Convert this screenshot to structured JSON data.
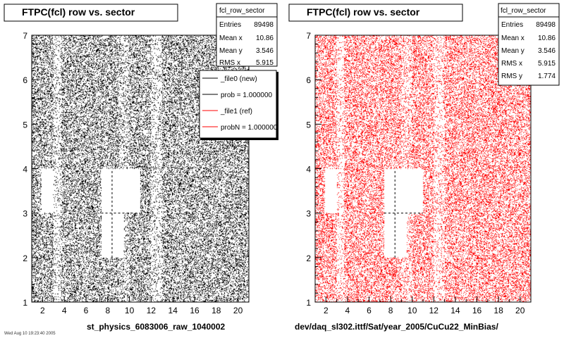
{
  "colors": {
    "left_points": "#000000",
    "right_points": "#ff0000",
    "frame": "#000000"
  },
  "chart_data": [
    {
      "type": "scatter",
      "title": "FTPC(fcl) row vs. sector",
      "xlabel": "",
      "ylabel": "",
      "xlim": [
        1,
        21
      ],
      "ylim": [
        1,
        7
      ],
      "x_ticks": [
        "2",
        "4",
        "6",
        "8",
        "10",
        "12",
        "14",
        "16",
        "18",
        "20"
      ],
      "y_ticks": [
        "1",
        "2",
        "3",
        "4",
        "5",
        "6",
        "7"
      ],
      "point_color": "#000000",
      "empty_regions": [
        {
          "x": [
            1.9,
            3.0
          ],
          "y": [
            3.0,
            4.0
          ]
        },
        {
          "x": [
            7.4,
            8.4
          ],
          "y": [
            2.0,
            4.0
          ]
        },
        {
          "x": [
            8.4,
            11.0
          ],
          "y": [
            3.0,
            4.0
          ]
        },
        {
          "x": [
            8.4,
            9.5
          ],
          "y": [
            2.0,
            3.0
          ]
        }
      ],
      "sparse_stripes": [
        {
          "x": [
            3.0,
            3.7
          ],
          "density": 0.35
        },
        {
          "x": [
            12.0,
            13.0
          ],
          "density": 0.4
        },
        {
          "x": [
            9.0,
            10.0
          ],
          "density": 0.6
        }
      ],
      "stats": {
        "name": "fcl_row_sector",
        "rows": [
          [
            "Entries",
            "89498"
          ],
          [
            "Mean x",
            "10.86"
          ],
          [
            "Mean y",
            "3.546"
          ],
          [
            "RMS x",
            "5.915"
          ]
        ]
      },
      "legend": [
        {
          "label": "_file0 (new)",
          "color": "#000000"
        },
        {
          "label": "prob = 1.000000",
          "color": "#000000"
        },
        {
          "label": "_file1 (ref)",
          "color": "#ff0000"
        },
        {
          "label": "probN = 1.000000",
          "color": "#ff0000"
        }
      ],
      "caption": "st_physics_6083006_raw_1040002"
    },
    {
      "type": "scatter",
      "title": "FTPC(fcl) row vs. sector",
      "xlabel": "",
      "ylabel": "",
      "xlim": [
        1,
        21
      ],
      "ylim": [
        1,
        7
      ],
      "x_ticks": [
        "2",
        "4",
        "6",
        "8",
        "10",
        "12",
        "14",
        "16",
        "18",
        "20"
      ],
      "y_ticks": [
        "1",
        "2",
        "3",
        "4",
        "5",
        "6",
        "7"
      ],
      "point_color": "#ff0000",
      "empty_regions": [
        {
          "x": [
            1.9,
            3.0
          ],
          "y": [
            3.0,
            4.0
          ]
        },
        {
          "x": [
            7.4,
            8.4
          ],
          "y": [
            2.0,
            4.0
          ]
        },
        {
          "x": [
            8.4,
            11.0
          ],
          "y": [
            3.0,
            4.0
          ]
        },
        {
          "x": [
            8.4,
            9.5
          ],
          "y": [
            2.0,
            3.0
          ]
        }
      ],
      "sparse_stripes": [
        {
          "x": [
            3.0,
            3.7
          ],
          "density": 0.35
        },
        {
          "x": [
            12.0,
            13.0
          ],
          "density": 0.4
        },
        {
          "x": [
            9.0,
            10.0
          ],
          "density": 0.6
        }
      ],
      "stats": {
        "name": "fcl_row_sector",
        "rows": [
          [
            "Entries",
            "89498"
          ],
          [
            "Mean x",
            "10.86"
          ],
          [
            "Mean y",
            "3.546"
          ],
          [
            "RMS x",
            "5.915"
          ],
          [
            "RMS y",
            "1.774"
          ]
        ]
      },
      "caption": "dev/daq_sl302.ittf/Sat/year_2005/CuCu22_MinBias/"
    }
  ],
  "footer_stamp": "Wed Aug 10 19:23:40 2005"
}
